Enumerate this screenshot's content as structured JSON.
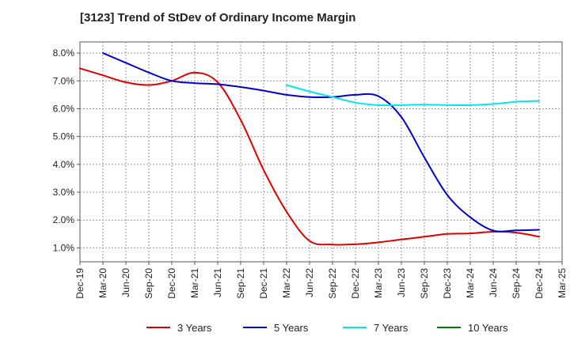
{
  "chart_data": {
    "type": "line",
    "title": "[3123]  Trend of StDev of Ordinary Income Margin",
    "xlabel": "",
    "ylabel": "",
    "x_ticks": [
      "Dec-19",
      "Mar-20",
      "Jun-20",
      "Sep-20",
      "Dec-20",
      "Mar-21",
      "Jun-21",
      "Sep-21",
      "Dec-21",
      "Mar-22",
      "Jun-22",
      "Sep-22",
      "Dec-22",
      "Mar-23",
      "Jun-23",
      "Sep-23",
      "Dec-23",
      "Mar-24",
      "Jun-24",
      "Sep-24",
      "Dec-24",
      "Mar-25"
    ],
    "y_ticks": [
      "1.0%",
      "2.0%",
      "3.0%",
      "4.0%",
      "5.0%",
      "6.0%",
      "7.0%",
      "8.0%"
    ],
    "y_tick_values": [
      1.0,
      2.0,
      3.0,
      4.0,
      5.0,
      6.0,
      7.0,
      8.0
    ],
    "ylim": [
      0.5,
      8.4
    ],
    "grid": true,
    "legend_position": "bottom",
    "series": [
      {
        "name": "3 Years",
        "color": "#e00000",
        "x": [
          "Dec-19",
          "Mar-20",
          "Jun-20",
          "Sep-20",
          "Dec-20",
          "Mar-21",
          "Jun-21",
          "Sep-21",
          "Dec-21",
          "Mar-22",
          "Jun-22",
          "Sep-22",
          "Dec-22",
          "Mar-23",
          "Jun-23",
          "Sep-23",
          "Dec-23",
          "Mar-24",
          "Jun-24",
          "Sep-24",
          "Dec-24"
        ],
        "values": [
          7.45,
          7.2,
          6.95,
          6.85,
          7.0,
          7.3,
          6.95,
          5.6,
          3.8,
          2.3,
          1.25,
          1.12,
          1.13,
          1.2,
          1.3,
          1.4,
          1.5,
          1.52,
          1.58,
          1.55,
          1.4
        ]
      },
      {
        "name": "5 Years",
        "color": "#0000cc",
        "x": [
          "Mar-20",
          "Jun-20",
          "Sep-20",
          "Dec-20",
          "Mar-21",
          "Jun-21",
          "Sep-21",
          "Dec-21",
          "Mar-22",
          "Jun-22",
          "Sep-22",
          "Dec-22",
          "Mar-23",
          "Jun-23",
          "Sep-23",
          "Dec-23",
          "Mar-24",
          "Jun-24",
          "Sep-24",
          "Dec-24"
        ],
        "values": [
          8.0,
          7.65,
          7.3,
          7.0,
          6.92,
          6.88,
          6.78,
          6.65,
          6.5,
          6.42,
          6.42,
          6.5,
          6.45,
          5.7,
          4.25,
          2.9,
          2.1,
          1.62,
          1.63,
          1.65
        ]
      },
      {
        "name": "7 Years",
        "color": "#00e5ee",
        "x": [
          "Mar-22",
          "Jun-22",
          "Sep-22",
          "Dec-22",
          "Mar-23",
          "Jun-23",
          "Sep-23",
          "Dec-23",
          "Mar-24",
          "Jun-24",
          "Sep-24",
          "Dec-24"
        ],
        "values": [
          6.85,
          6.62,
          6.42,
          6.22,
          6.13,
          6.13,
          6.15,
          6.13,
          6.13,
          6.17,
          6.25,
          6.28
        ]
      },
      {
        "name": "10 Years",
        "color": "#008000",
        "x": [],
        "values": []
      }
    ]
  }
}
